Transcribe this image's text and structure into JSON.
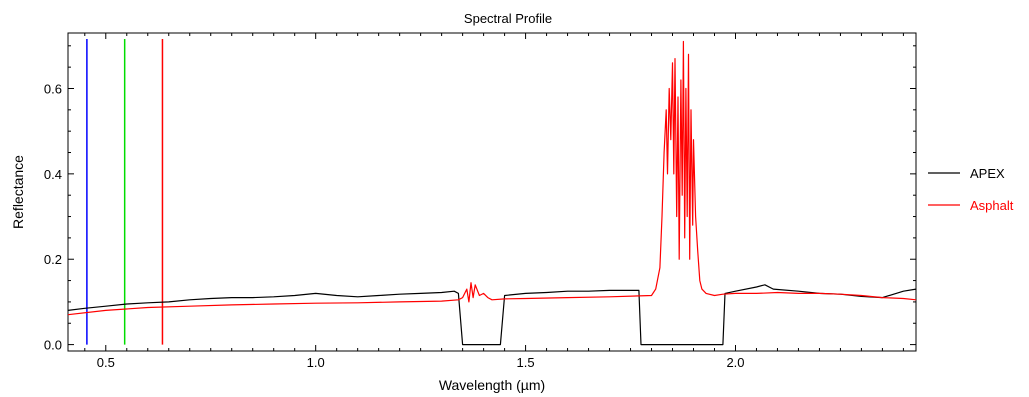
{
  "chart_data": {
    "type": "line",
    "title": "Spectral Profile",
    "xlabel": "Wavelength (µm)",
    "ylabel": "Reflectance",
    "xlim": [
      0.41,
      2.43
    ],
    "ylim": [
      -0.015,
      0.73
    ],
    "xticks": [
      0.5,
      1.0,
      1.5,
      2.0
    ],
    "xtick_labels": [
      "0.5",
      "1.0",
      "1.5",
      "2.0"
    ],
    "yticks": [
      0.0,
      0.2,
      0.4,
      0.6
    ],
    "ytick_labels": [
      "0.0",
      "0.2",
      "0.4",
      "0.6"
    ],
    "grid": false,
    "legend_position": "right",
    "band_markers": [
      {
        "x": 0.455,
        "color": "#0000ff"
      },
      {
        "x": 0.545,
        "color": "#00dd00"
      },
      {
        "x": 0.635,
        "color": "#ff0000"
      }
    ],
    "series": [
      {
        "name": "APEX",
        "color": "#000000",
        "points": [
          [
            0.41,
            0.08
          ],
          [
            0.45,
            0.085
          ],
          [
            0.5,
            0.09
          ],
          [
            0.55,
            0.095
          ],
          [
            0.6,
            0.098
          ],
          [
            0.65,
            0.1
          ],
          [
            0.7,
            0.105
          ],
          [
            0.75,
            0.108
          ],
          [
            0.8,
            0.11
          ],
          [
            0.85,
            0.11
          ],
          [
            0.9,
            0.112
          ],
          [
            0.95,
            0.115
          ],
          [
            1.0,
            0.12
          ],
          [
            1.05,
            0.115
          ],
          [
            1.1,
            0.112
          ],
          [
            1.15,
            0.115
          ],
          [
            1.2,
            0.118
          ],
          [
            1.25,
            0.12
          ],
          [
            1.3,
            0.122
          ],
          [
            1.33,
            0.125
          ],
          [
            1.34,
            0.12
          ],
          [
            1.35,
            0.0
          ],
          [
            1.44,
            0.0
          ],
          [
            1.45,
            0.115
          ],
          [
            1.5,
            0.12
          ],
          [
            1.55,
            0.122
          ],
          [
            1.6,
            0.125
          ],
          [
            1.65,
            0.125
          ],
          [
            1.7,
            0.127
          ],
          [
            1.77,
            0.127
          ],
          [
            1.775,
            0.0
          ],
          [
            1.97,
            0.0
          ],
          [
            1.975,
            0.12
          ],
          [
            2.0,
            0.125
          ],
          [
            2.05,
            0.135
          ],
          [
            2.07,
            0.14
          ],
          [
            2.09,
            0.13
          ],
          [
            2.15,
            0.125
          ],
          [
            2.2,
            0.12
          ],
          [
            2.25,
            0.118
          ],
          [
            2.3,
            0.113
          ],
          [
            2.35,
            0.11
          ],
          [
            2.4,
            0.125
          ],
          [
            2.43,
            0.13
          ]
        ]
      },
      {
        "name": "Asphalt",
        "color": "#ff0000",
        "points": [
          [
            0.41,
            0.07
          ],
          [
            0.5,
            0.08
          ],
          [
            0.6,
            0.087
          ],
          [
            0.7,
            0.09
          ],
          [
            0.8,
            0.093
          ],
          [
            0.9,
            0.095
          ],
          [
            1.0,
            0.097
          ],
          [
            1.1,
            0.098
          ],
          [
            1.2,
            0.1
          ],
          [
            1.3,
            0.102
          ],
          [
            1.34,
            0.105
          ],
          [
            1.35,
            0.11
          ],
          [
            1.36,
            0.13
          ],
          [
            1.365,
            0.1
          ],
          [
            1.37,
            0.145
          ],
          [
            1.375,
            0.11
          ],
          [
            1.38,
            0.14
          ],
          [
            1.39,
            0.115
          ],
          [
            1.4,
            0.12
          ],
          [
            1.41,
            0.11
          ],
          [
            1.42,
            0.105
          ],
          [
            1.45,
            0.107
          ],
          [
            1.5,
            0.108
          ],
          [
            1.6,
            0.11
          ],
          [
            1.7,
            0.112
          ],
          [
            1.8,
            0.115
          ],
          [
            1.81,
            0.13
          ],
          [
            1.82,
            0.18
          ],
          [
            1.825,
            0.3
          ],
          [
            1.83,
            0.45
          ],
          [
            1.835,
            0.55
          ],
          [
            1.838,
            0.4
          ],
          [
            1.842,
            0.6
          ],
          [
            1.846,
            0.48
          ],
          [
            1.85,
            0.66
          ],
          [
            1.853,
            0.4
          ],
          [
            1.856,
            0.67
          ],
          [
            1.86,
            0.3
          ],
          [
            1.863,
            0.58
          ],
          [
            1.866,
            0.2
          ],
          [
            1.87,
            0.62
          ],
          [
            1.873,
            0.35
          ],
          [
            1.876,
            0.71
          ],
          [
            1.879,
            0.25
          ],
          [
            1.882,
            0.6
          ],
          [
            1.885,
            0.3
          ],
          [
            1.888,
            0.68
          ],
          [
            1.891,
            0.2
          ],
          [
            1.894,
            0.55
          ],
          [
            1.898,
            0.28
          ],
          [
            1.9,
            0.48
          ],
          [
            1.905,
            0.3
          ],
          [
            1.91,
            0.22
          ],
          [
            1.915,
            0.15
          ],
          [
            1.92,
            0.13
          ],
          [
            1.93,
            0.12
          ],
          [
            1.95,
            0.115
          ],
          [
            1.97,
            0.118
          ],
          [
            2.0,
            0.12
          ],
          [
            2.05,
            0.12
          ],
          [
            2.1,
            0.122
          ],
          [
            2.15,
            0.12
          ],
          [
            2.2,
            0.12
          ],
          [
            2.25,
            0.118
          ],
          [
            2.3,
            0.115
          ],
          [
            2.35,
            0.11
          ],
          [
            2.4,
            0.108
          ],
          [
            2.43,
            0.105
          ]
        ]
      }
    ]
  }
}
